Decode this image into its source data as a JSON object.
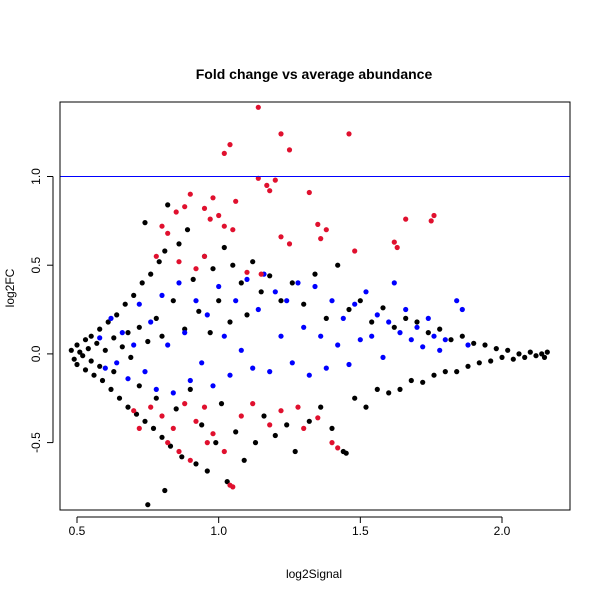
{
  "chart_data": {
    "type": "scatter",
    "title": "Fold change vs average abundance",
    "xlabel": "log2Signal",
    "ylabel": "log2FC",
    "xlim": [
      0.44,
      2.24
    ],
    "ylim": [
      -0.88,
      1.42
    ],
    "xticks": [
      0.5,
      1.0,
      1.5,
      2.0
    ],
    "xtick_labels": [
      "0.5",
      "1.0",
      "1.5",
      "2.0"
    ],
    "yticks": [
      -0.5,
      0.0,
      0.5,
      1.0
    ],
    "ytick_labels": [
      "-0.5",
      "0.0",
      "0.5",
      "1.0"
    ],
    "hline": {
      "y": 1.0,
      "color": "#0000ff"
    },
    "grid": false,
    "legend": "none",
    "series": [
      {
        "color": "#000000",
        "points": [
          [
            0.48,
            0.02
          ],
          [
            0.49,
            -0.03
          ],
          [
            0.5,
            0.05
          ],
          [
            0.5,
            -0.06
          ],
          [
            0.51,
            0.01
          ],
          [
            0.52,
            -0.01
          ],
          [
            0.53,
            0.08
          ],
          [
            0.53,
            -0.09
          ],
          [
            0.54,
            0.03
          ],
          [
            0.55,
            -0.04
          ],
          [
            0.55,
            0.1
          ],
          [
            0.56,
            -0.12
          ],
          [
            0.57,
            0.06
          ],
          [
            0.58,
            -0.07
          ],
          [
            0.58,
            0.14
          ],
          [
            0.59,
            -0.15
          ],
          [
            0.6,
            0.02
          ],
          [
            0.61,
            0.18
          ],
          [
            0.62,
            -0.2
          ],
          [
            0.63,
            0.09
          ],
          [
            0.63,
            -0.1
          ],
          [
            0.64,
            0.22
          ],
          [
            0.65,
            -0.25
          ],
          [
            0.66,
            0.04
          ],
          [
            0.67,
            0.28
          ],
          [
            0.68,
            -0.3
          ],
          [
            0.68,
            0.12
          ],
          [
            0.69,
            -0.02
          ],
          [
            0.7,
            0.33
          ],
          [
            0.71,
            -0.34
          ],
          [
            0.72,
            0.15
          ],
          [
            0.72,
            -0.18
          ],
          [
            0.73,
            0.4
          ],
          [
            0.74,
            -0.38
          ],
          [
            0.74,
            0.74
          ],
          [
            0.75,
            -0.85
          ],
          [
            0.75,
            0.07
          ],
          [
            0.76,
            0.45
          ],
          [
            0.77,
            -0.42
          ],
          [
            0.78,
            0.2
          ],
          [
            0.78,
            -0.25
          ],
          [
            0.79,
            0.52
          ],
          [
            0.8,
            -0.47
          ],
          [
            0.8,
            0.1
          ],
          [
            0.81,
            0.58
          ],
          [
            0.81,
            -0.77
          ],
          [
            0.82,
            0.84
          ],
          [
            0.83,
            -0.52
          ],
          [
            0.84,
            0.3
          ],
          [
            0.85,
            -0.31
          ],
          [
            0.86,
            0.62
          ],
          [
            0.87,
            -0.58
          ],
          [
            0.88,
            0.14
          ],
          [
            0.89,
            0.7
          ],
          [
            0.9,
            -0.2
          ],
          [
            0.91,
            0.42
          ],
          [
            0.92,
            -0.62
          ],
          [
            0.93,
            0.24
          ],
          [
            0.94,
            -0.4
          ],
          [
            0.95,
            0.55
          ],
          [
            0.96,
            -0.66
          ],
          [
            0.97,
            0.12
          ],
          [
            0.98,
            0.48
          ],
          [
            0.99,
            -0.5
          ],
          [
            1.0,
            0.3
          ],
          [
            1.01,
            -0.28
          ],
          [
            1.02,
            0.6
          ],
          [
            1.03,
            -0.72
          ],
          [
            1.04,
            0.18
          ],
          [
            1.05,
            0.5
          ],
          [
            1.06,
            -0.44
          ],
          [
            1.08,
            0.4
          ],
          [
            1.09,
            -0.6
          ],
          [
            1.1,
            0.22
          ],
          [
            1.12,
            0.52
          ],
          [
            1.13,
            -0.5
          ],
          [
            1.15,
            0.35
          ],
          [
            1.16,
            -0.35
          ],
          [
            1.18,
            0.44
          ],
          [
            1.2,
            -0.46
          ],
          [
            1.22,
            0.3
          ],
          [
            1.24,
            -0.4
          ],
          [
            1.26,
            0.4
          ],
          [
            1.27,
            -0.55
          ],
          [
            1.3,
            0.28
          ],
          [
            1.32,
            -0.38
          ],
          [
            1.34,
            0.45
          ],
          [
            1.36,
            -0.3
          ],
          [
            1.38,
            0.2
          ],
          [
            1.4,
            -0.42
          ],
          [
            1.42,
            0.5
          ],
          [
            1.44,
            -0.55
          ],
          [
            1.45,
            -0.56
          ],
          [
            1.46,
            0.25
          ],
          [
            1.48,
            -0.25
          ],
          [
            1.5,
            0.3
          ],
          [
            1.52,
            -0.3
          ],
          [
            1.54,
            0.18
          ],
          [
            1.56,
            -0.2
          ],
          [
            1.58,
            0.26
          ],
          [
            1.6,
            -0.22
          ],
          [
            1.62,
            0.15
          ],
          [
            1.64,
            -0.2
          ],
          [
            1.66,
            0.2
          ],
          [
            1.68,
            -0.15
          ],
          [
            1.7,
            0.18
          ],
          [
            1.72,
            -0.16
          ],
          [
            1.74,
            0.12
          ],
          [
            1.76,
            -0.12
          ],
          [
            1.78,
            0.14
          ],
          [
            1.8,
            -0.1
          ],
          [
            1.82,
            0.08
          ],
          [
            1.84,
            -0.1
          ],
          [
            1.86,
            0.1
          ],
          [
            1.88,
            -0.07
          ],
          [
            1.9,
            0.06
          ],
          [
            1.92,
            -0.05
          ],
          [
            1.94,
            0.05
          ],
          [
            1.96,
            -0.04
          ],
          [
            1.98,
            0.03
          ],
          [
            2.0,
            -0.02
          ],
          [
            2.02,
            0.02
          ],
          [
            2.04,
            -0.03
          ],
          [
            2.06,
            0.0
          ],
          [
            2.08,
            -0.02
          ],
          [
            2.1,
            0.01
          ],
          [
            2.12,
            -0.01
          ],
          [
            2.14,
            0.0
          ],
          [
            2.15,
            -0.02
          ],
          [
            2.16,
            0.01
          ]
        ]
      },
      {
        "color": "#0000ff",
        "points": [
          [
            0.58,
            0.09
          ],
          [
            0.6,
            -0.08
          ],
          [
            0.62,
            0.2
          ],
          [
            0.64,
            -0.05
          ],
          [
            0.66,
            0.12
          ],
          [
            0.68,
            -0.14
          ],
          [
            0.7,
            0.05
          ],
          [
            0.72,
            0.28
          ],
          [
            0.74,
            -0.1
          ],
          [
            0.76,
            0.18
          ],
          [
            0.78,
            -0.2
          ],
          [
            0.8,
            0.33
          ],
          [
            0.82,
            0.05
          ],
          [
            0.84,
            -0.22
          ],
          [
            0.86,
            0.4
          ],
          [
            0.88,
            0.12
          ],
          [
            0.9,
            -0.15
          ],
          [
            0.92,
            0.3
          ],
          [
            0.94,
            -0.05
          ],
          [
            0.96,
            0.22
          ],
          [
            0.98,
            -0.18
          ],
          [
            1.0,
            0.38
          ],
          [
            1.02,
            0.1
          ],
          [
            1.04,
            -0.12
          ],
          [
            1.06,
            0.3
          ],
          [
            1.08,
            0.02
          ],
          [
            1.1,
            0.42
          ],
          [
            1.12,
            -0.08
          ],
          [
            1.14,
            0.25
          ],
          [
            1.16,
            0.45
          ],
          [
            1.18,
            -0.1
          ],
          [
            1.2,
            0.35
          ],
          [
            1.22,
            0.1
          ],
          [
            1.24,
            0.3
          ],
          [
            1.26,
            -0.05
          ],
          [
            1.28,
            0.4
          ],
          [
            1.3,
            0.15
          ],
          [
            1.32,
            -0.12
          ],
          [
            1.34,
            0.38
          ],
          [
            1.36,
            0.1
          ],
          [
            1.38,
            -0.08
          ],
          [
            1.4,
            0.3
          ],
          [
            1.42,
            0.05
          ],
          [
            1.44,
            0.2
          ],
          [
            1.46,
            -0.06
          ],
          [
            1.48,
            0.28
          ],
          [
            1.5,
            0.08
          ],
          [
            1.52,
            0.35
          ],
          [
            1.54,
            0.1
          ],
          [
            1.56,
            0.22
          ],
          [
            1.58,
            -0.02
          ],
          [
            1.6,
            0.18
          ],
          [
            1.62,
            0.4
          ],
          [
            1.64,
            0.12
          ],
          [
            1.66,
            0.25
          ],
          [
            1.68,
            0.08
          ],
          [
            1.7,
            0.15
          ],
          [
            1.72,
            0.04
          ],
          [
            1.74,
            0.2
          ],
          [
            1.76,
            0.1
          ],
          [
            1.78,
            0.02
          ],
          [
            1.8,
            0.08
          ],
          [
            1.84,
            0.3
          ],
          [
            1.86,
            0.25
          ],
          [
            1.88,
            0.05
          ]
        ]
      },
      {
        "color": "#e0102e",
        "points": [
          [
            1.14,
            1.39
          ],
          [
            1.22,
            1.24
          ],
          [
            1.46,
            1.24
          ],
          [
            1.04,
            1.18
          ],
          [
            1.02,
            1.13
          ],
          [
            1.25,
            1.15
          ],
          [
            1.2,
            0.98
          ],
          [
            1.14,
            0.99
          ],
          [
            1.17,
            0.95
          ],
          [
            1.32,
            0.91
          ],
          [
            1.18,
            0.92
          ],
          [
            0.9,
            0.9
          ],
          [
            0.88,
            0.83
          ],
          [
            0.98,
            0.88
          ],
          [
            1.06,
            0.86
          ],
          [
            0.85,
            0.8
          ],
          [
            0.95,
            0.82
          ],
          [
            0.97,
            0.76
          ],
          [
            1.0,
            0.78
          ],
          [
            1.02,
            0.72
          ],
          [
            1.05,
            0.7
          ],
          [
            0.8,
            0.72
          ],
          [
            0.82,
            0.68
          ],
          [
            1.35,
            0.73
          ],
          [
            1.38,
            0.7
          ],
          [
            1.36,
            0.65
          ],
          [
            1.22,
            0.66
          ],
          [
            1.25,
            0.62
          ],
          [
            1.76,
            0.78
          ],
          [
            1.75,
            0.75
          ],
          [
            1.66,
            0.76
          ],
          [
            1.62,
            0.63
          ],
          [
            1.63,
            0.6
          ],
          [
            1.48,
            0.58
          ],
          [
            0.78,
            0.55
          ],
          [
            0.86,
            0.52
          ],
          [
            0.92,
            0.48
          ],
          [
            1.1,
            0.46
          ],
          [
            1.15,
            0.45
          ],
          [
            0.95,
            0.55
          ],
          [
            0.76,
            -0.3
          ],
          [
            0.8,
            -0.35
          ],
          [
            0.84,
            -0.42
          ],
          [
            0.88,
            -0.28
          ],
          [
            0.9,
            -0.6
          ],
          [
            0.92,
            -0.38
          ],
          [
            0.95,
            -0.3
          ],
          [
            0.98,
            -0.45
          ],
          [
            1.02,
            -0.55
          ],
          [
            1.04,
            -0.74
          ],
          [
            1.05,
            -0.75
          ],
          [
            1.08,
            -0.35
          ],
          [
            1.12,
            -0.28
          ],
          [
            1.18,
            -0.4
          ],
          [
            1.22,
            -0.32
          ],
          [
            1.28,
            -0.3
          ],
          [
            1.3,
            -0.42
          ],
          [
            1.35,
            -0.36
          ],
          [
            1.4,
            -0.5
          ],
          [
            1.42,
            -0.53
          ],
          [
            0.72,
            -0.42
          ],
          [
            0.7,
            -0.32
          ],
          [
            0.82,
            -0.5
          ],
          [
            0.86,
            -0.55
          ],
          [
            0.96,
            -0.5
          ]
        ]
      }
    ]
  }
}
